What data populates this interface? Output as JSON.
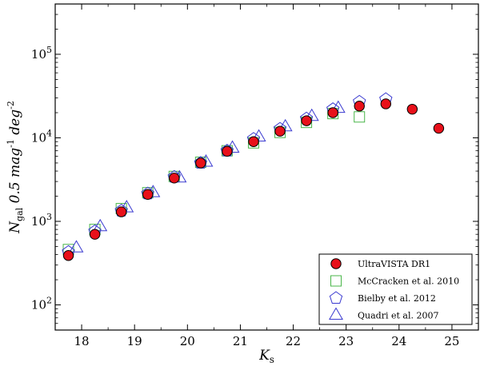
{
  "chart_data": {
    "type": "scatter",
    "title": "",
    "xlabel": "K_s",
    "ylabel": "N_gal 0.5 mag^-1 deg^-2",
    "xlim": [
      17.5,
      25.5
    ],
    "ylim": [
      50,
      400000
    ],
    "y_scale": "log",
    "x_ticks": [
      18,
      19,
      20,
      21,
      22,
      23,
      24,
      25
    ],
    "y_ticks": [
      {
        "value": 100,
        "mantissa": "10",
        "exp": "2"
      },
      {
        "value": 1000,
        "mantissa": "10",
        "exp": "3"
      },
      {
        "value": 10000,
        "mantissa": "10",
        "exp": "4"
      },
      {
        "value": 100000,
        "mantissa": "10",
        "exp": "5"
      }
    ],
    "grid": false,
    "legend_position": "bottom-right",
    "series": [
      {
        "name": "UltraVISTA DR1",
        "marker": "circle",
        "color": "#e8101a",
        "edge": "#000000",
        "x": [
          17.75,
          18.25,
          18.75,
          19.25,
          19.75,
          20.25,
          20.75,
          21.25,
          21.75,
          22.25,
          22.75,
          23.25,
          23.75,
          24.25,
          24.75
        ],
        "y": [
          390,
          700,
          1300,
          2100,
          3300,
          5000,
          6900,
          9000,
          12000,
          16000,
          20000,
          24000,
          25500,
          22000,
          13000
        ]
      },
      {
        "name": "McCracken et al. 2010",
        "marker": "square",
        "color": "#49b649",
        "x": [
          17.75,
          18.25,
          18.75,
          19.25,
          19.75,
          20.25,
          20.75,
          21.25,
          21.75,
          22.25,
          22.75,
          23.25
        ],
        "y": [
          460,
          800,
          1420,
          2200,
          3450,
          5100,
          7000,
          8700,
          11600,
          15300,
          19500,
          17800
        ]
      },
      {
        "name": "Bielby et al. 2012",
        "marker": "pentagon",
        "color": "#3a3ad0",
        "x": [
          17.75,
          18.25,
          18.75,
          19.25,
          19.75,
          20.25,
          20.75,
          21.25,
          21.75,
          22.25,
          22.75,
          23.25,
          23.75
        ],
        "y": [
          430,
          760,
          1340,
          2150,
          3400,
          5000,
          7000,
          9700,
          12800,
          17000,
          22000,
          27000,
          29000
        ]
      },
      {
        "name": "Quadri et al. 2007",
        "marker": "triangle",
        "color": "#3a3ad0",
        "x": [
          17.9,
          18.35,
          18.85,
          19.35,
          19.85,
          20.35,
          20.85,
          21.35,
          21.85,
          22.35,
          22.85
        ],
        "y": [
          480,
          860,
          1450,
          2200,
          3300,
          5100,
          7500,
          10200,
          13500,
          18000,
          22500
        ]
      }
    ]
  }
}
